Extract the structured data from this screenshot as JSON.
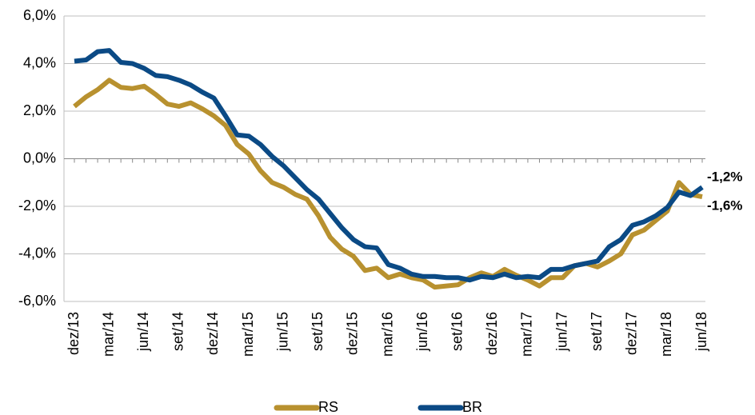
{
  "chart_data": {
    "type": "line",
    "categories": [
      "dez/13",
      null,
      null,
      "mar/14",
      null,
      null,
      "jun/14",
      null,
      null,
      "set/14",
      null,
      null,
      "dez/14",
      null,
      null,
      "mar/15",
      null,
      null,
      "jun/15",
      null,
      null,
      "set/15",
      null,
      null,
      "dez/15",
      null,
      null,
      "mar/16",
      null,
      null,
      "jun/16",
      null,
      null,
      "set/16",
      null,
      null,
      "dez/16",
      null,
      null,
      "mar/17",
      null,
      null,
      "jun/17",
      null,
      null,
      "set/17",
      null,
      null,
      "dez/17",
      null,
      null,
      "mar/18",
      null,
      null,
      "jun/18"
    ],
    "series": [
      {
        "name": "RS",
        "color": "#b8912f",
        "values": [
          2.2,
          2.6,
          2.9,
          3.3,
          3.0,
          2.95,
          3.05,
          2.7,
          2.3,
          2.2,
          2.35,
          2.1,
          1.8,
          1.4,
          0.6,
          0.2,
          -0.5,
          -1.0,
          -1.2,
          -1.5,
          -1.7,
          -2.4,
          -3.3,
          -3.8,
          -4.1,
          -4.7,
          -4.6,
          -5.0,
          -4.85,
          -5.0,
          -5.1,
          -5.4,
          -5.35,
          -5.3,
          -5.0,
          -4.8,
          -4.95,
          -4.65,
          -4.9,
          -5.1,
          -5.35,
          -5.0,
          -5.0,
          -4.5,
          -4.4,
          -4.55,
          -4.3,
          -4.0,
          -3.2,
          -3.0,
          -2.6,
          -2.2,
          -1.0,
          -1.5,
          -1.6
        ],
        "value_labels": [
          null,
          null,
          null,
          null,
          null,
          null,
          null,
          null,
          null,
          null,
          null,
          null,
          null,
          null,
          null,
          null,
          null,
          null,
          null,
          null,
          null,
          null,
          null,
          null,
          null,
          null,
          null,
          null,
          null,
          null,
          null,
          null,
          null,
          null,
          null,
          null,
          null,
          null,
          null,
          null,
          null,
          null,
          null,
          null,
          null,
          null,
          null,
          null,
          null,
          null,
          null,
          null,
          null,
          null,
          "-1,6%"
        ]
      },
      {
        "name": "BR",
        "color": "#0b4a85",
        "values": [
          4.1,
          4.15,
          4.5,
          4.55,
          4.05,
          4.0,
          3.8,
          3.5,
          3.45,
          3.3,
          3.1,
          2.8,
          2.55,
          1.8,
          1.0,
          0.95,
          0.6,
          0.1,
          -0.3,
          -0.8,
          -1.3,
          -1.7,
          -2.3,
          -2.9,
          -3.4,
          -3.7,
          -3.75,
          -4.45,
          -4.6,
          -4.85,
          -4.95,
          -4.95,
          -5.0,
          -5.0,
          -5.1,
          -4.95,
          -5.0,
          -4.85,
          -5.0,
          -4.95,
          -5.0,
          -4.65,
          -4.65,
          -4.5,
          -4.4,
          -4.3,
          -3.7,
          -3.4,
          -2.8,
          -2.65,
          -2.4,
          -2.05,
          -1.4,
          -1.55,
          -1.2
        ],
        "value_labels": [
          null,
          null,
          null,
          null,
          null,
          null,
          null,
          null,
          null,
          null,
          null,
          null,
          null,
          null,
          null,
          null,
          null,
          null,
          null,
          null,
          null,
          null,
          null,
          null,
          null,
          null,
          null,
          null,
          null,
          null,
          null,
          null,
          null,
          null,
          null,
          null,
          null,
          null,
          null,
          null,
          null,
          null,
          null,
          null,
          null,
          null,
          null,
          null,
          null,
          null,
          null,
          null,
          null,
          null,
          "-1,2%"
        ]
      }
    ],
    "ylim": [
      -6,
      6
    ],
    "yticks": [
      {
        "value": -6,
        "label": "-6,0%"
      },
      {
        "value": -4,
        "label": "-4,0%"
      },
      {
        "value": -2,
        "label": "-2,0%"
      },
      {
        "value": 0,
        "label": "0,0%"
      },
      {
        "value": 2,
        "label": "2,0%"
      },
      {
        "value": 4,
        "label": "4,0%"
      },
      {
        "value": 6,
        "label": "6,0%"
      }
    ],
    "grid": true
  }
}
